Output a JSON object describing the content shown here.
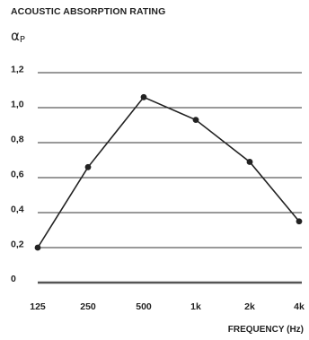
{
  "chart_data": {
    "type": "line",
    "title": "ACOUSTIC ABSORPTION RATING",
    "ylabel": {
      "symbol": "α",
      "subscript": "P"
    },
    "xlabel": "FREQUENCY (Hz)",
    "categories": [
      "125",
      "250",
      "500",
      "1k",
      "2k",
      "4k"
    ],
    "yticks": [
      0,
      0.2,
      0.4,
      0.6,
      0.8,
      1.0,
      1.2
    ],
    "ytick_labels": [
      "0",
      "0,2",
      "0,4",
      "0,6",
      "0,8",
      "1,0",
      "1,2"
    ],
    "ylim": [
      0,
      1.2
    ],
    "grid": true,
    "series": [
      {
        "values": [
          0.2,
          0.66,
          1.06,
          0.93,
          0.69,
          0.35
        ]
      }
    ],
    "colors": {
      "line": "#222222",
      "grid": "#333333",
      "baseline": "#555555"
    }
  }
}
